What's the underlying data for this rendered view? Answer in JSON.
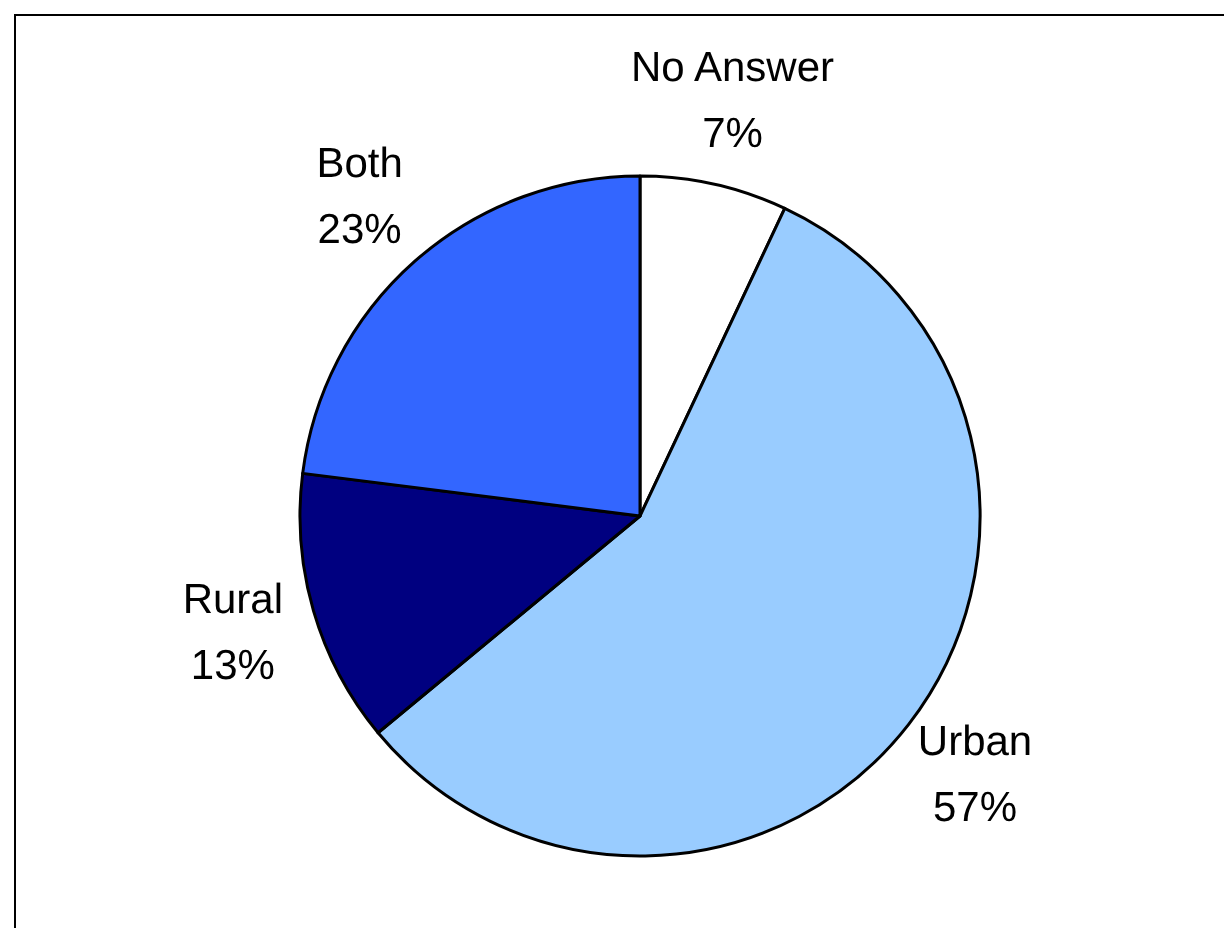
{
  "chart_data": {
    "type": "pie",
    "categories": [
      "No Answer",
      "Urban",
      "Rural",
      "Both"
    ],
    "values": [
      7,
      57,
      13,
      23
    ],
    "colors": [
      "#ffffff",
      "#99ccff",
      "#000080",
      "#3366ff"
    ],
    "value_labels": [
      "7%",
      "57%",
      "13%",
      "23%"
    ]
  }
}
